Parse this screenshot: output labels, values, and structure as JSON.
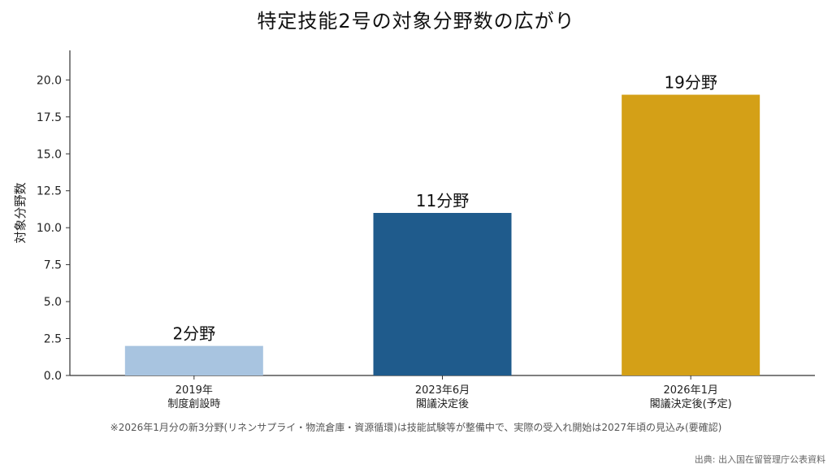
{
  "chart_data": {
    "type": "bar",
    "title": "特定技能2号の対象分野数の広がり",
    "xlabel": "",
    "ylabel": "対象分野数",
    "ylim": [
      0,
      22
    ],
    "yticks": [
      "0.0",
      "2.5",
      "5.0",
      "7.5",
      "10.0",
      "12.5",
      "15.0",
      "17.5",
      "20.0"
    ],
    "grid": false,
    "categories": [
      [
        "2019年",
        "制度創設時"
      ],
      [
        "2023年6月",
        "閣議決定後"
      ],
      [
        "2026年1月",
        "閣議決定後(予定)"
      ]
    ],
    "values": [
      2,
      11,
      19
    ],
    "data_labels": [
      "2分野",
      "11分野",
      "19分野"
    ],
    "colors": [
      "#a8c4e0",
      "#1f5b8c",
      "#d4a017"
    ],
    "axis_color": "#333333"
  },
  "note": "※2026年1月分の新3分野(リネンサプライ・物流倉庫・資源循環)は技能試験等が整備中で、実際の受入れ開始は2027年頃の見込み(要確認)",
  "source": "出典: 出入国在留管理庁公表資料"
}
